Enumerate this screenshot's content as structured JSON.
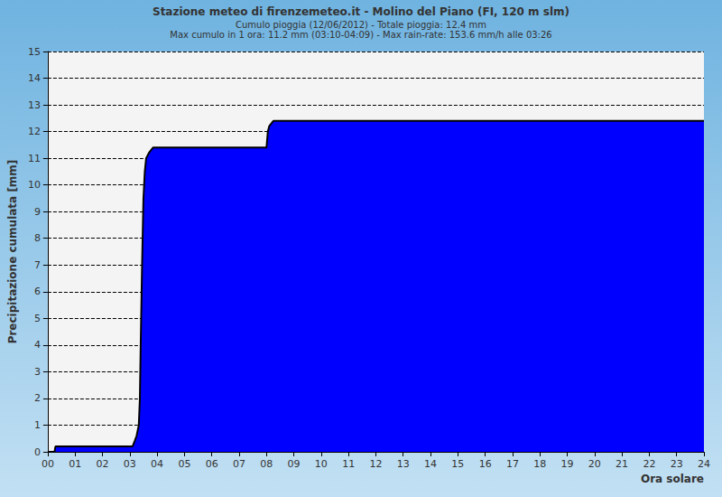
{
  "chart_data": {
    "type": "area",
    "title": "Stazione meteo di firenzemeteo.it - Molino del Piano (FI, 120 m slm)",
    "subtitle": [
      "Cumulo pioggia (12/06/2012) - Totale pioggia: 12.4 mm",
      "Max cumulo in 1 ora: 11.2 mm (03:10-04:09) - Max rain-rate: 153.6 mm/h alle 03:26"
    ],
    "x_label": "Ora solare",
    "y_label": "Precipitazione cumulata [mm]",
    "x": [
      0,
      0.25,
      0.28,
      3.1,
      3.18,
      3.25,
      3.33,
      3.37,
      3.4,
      3.45,
      3.5,
      3.55,
      3.6,
      3.7,
      3.85,
      8.0,
      8.05,
      8.1,
      8.25,
      24
    ],
    "values": [
      0,
      0,
      0.2,
      0.2,
      0.4,
      0.6,
      1.0,
      2.0,
      4.0,
      7.0,
      9.5,
      10.5,
      11.0,
      11.2,
      11.4,
      11.4,
      12.0,
      12.2,
      12.4,
      12.4
    ],
    "color": "#0000ff",
    "xlim": [
      0,
      24
    ],
    "xticks": [
      {
        "value": 0,
        "label": "00"
      },
      {
        "value": 1,
        "label": "01"
      },
      {
        "value": 2,
        "label": "02"
      },
      {
        "value": 3,
        "label": "03"
      },
      {
        "value": 4,
        "label": "04"
      },
      {
        "value": 5,
        "label": "05"
      },
      {
        "value": 6,
        "label": "06"
      },
      {
        "value": 7,
        "label": "07"
      },
      {
        "value": 8,
        "label": "08"
      },
      {
        "value": 9,
        "label": "09"
      },
      10,
      11,
      12,
      13,
      14,
      15,
      16,
      17,
      18,
      19,
      20,
      21,
      22,
      23,
      24
    ],
    "ylim": [
      0,
      15
    ],
    "yticks": [
      0,
      1,
      2,
      3,
      4,
      5,
      6,
      7,
      8,
      9,
      10,
      11,
      12,
      13,
      14,
      15
    ],
    "grid": true
  }
}
